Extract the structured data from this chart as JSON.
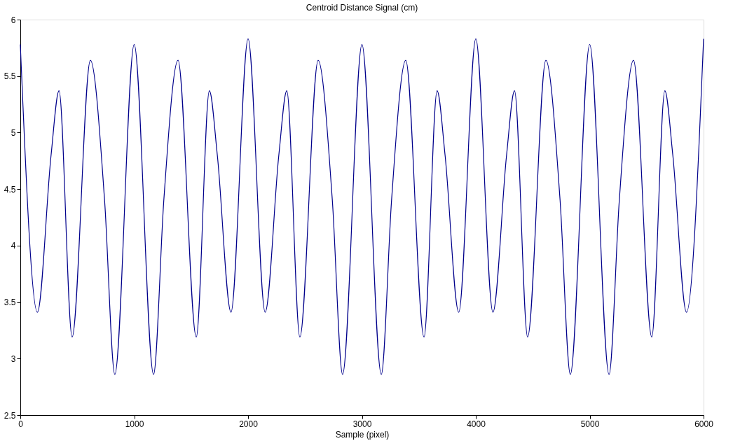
{
  "chart_data": {
    "type": "line",
    "title": "Centroid Distance Signal (cm)",
    "xlabel": "Sample (pixel)",
    "x": [
      0,
      150,
      270,
      340,
      455,
      615,
      740,
      830,
      1000,
      1170,
      1260,
      1385,
      1545,
      1660,
      1730,
      1850,
      2000,
      2150,
      2270,
      2340,
      2455,
      2615,
      2740,
      2830,
      3000,
      3170,
      3260,
      3385,
      3545,
      3660,
      3730,
      3850,
      4000,
      4150,
      4270,
      4340,
      4455,
      4615,
      4740,
      4830,
      5000,
      5170,
      5260,
      5385,
      5545,
      5660,
      5730,
      5850,
      6000
    ],
    "series": [
      {
        "color": "#00008b",
        "values": [
          5.78,
          3.41,
          4.8,
          5.37,
          3.19,
          5.64,
          4.4,
          2.86,
          5.78,
          2.86,
          4.4,
          5.64,
          3.19,
          5.37,
          4.8,
          3.41,
          5.83,
          3.41,
          4.8,
          5.37,
          3.19,
          5.64,
          4.4,
          2.86,
          5.78,
          2.86,
          4.4,
          5.64,
          3.19,
          5.37,
          4.8,
          3.41,
          5.83,
          3.41,
          4.8,
          5.37,
          3.19,
          5.64,
          4.4,
          2.86,
          5.78,
          2.86,
          4.4,
          5.64,
          3.19,
          5.37,
          4.8,
          3.41,
          5.83
        ]
      }
    ],
    "xlim": [
      0,
      6000
    ],
    "xticks": [
      0,
      1000,
      2000,
      3000,
      4000,
      5000,
      6000
    ],
    "ylim": [
      2.5,
      6
    ],
    "yticks": [
      2.5,
      3,
      3.5,
      4,
      4.5,
      5,
      5.5,
      6
    ],
    "grid": false,
    "marker": "none",
    "line_style": "solid"
  }
}
